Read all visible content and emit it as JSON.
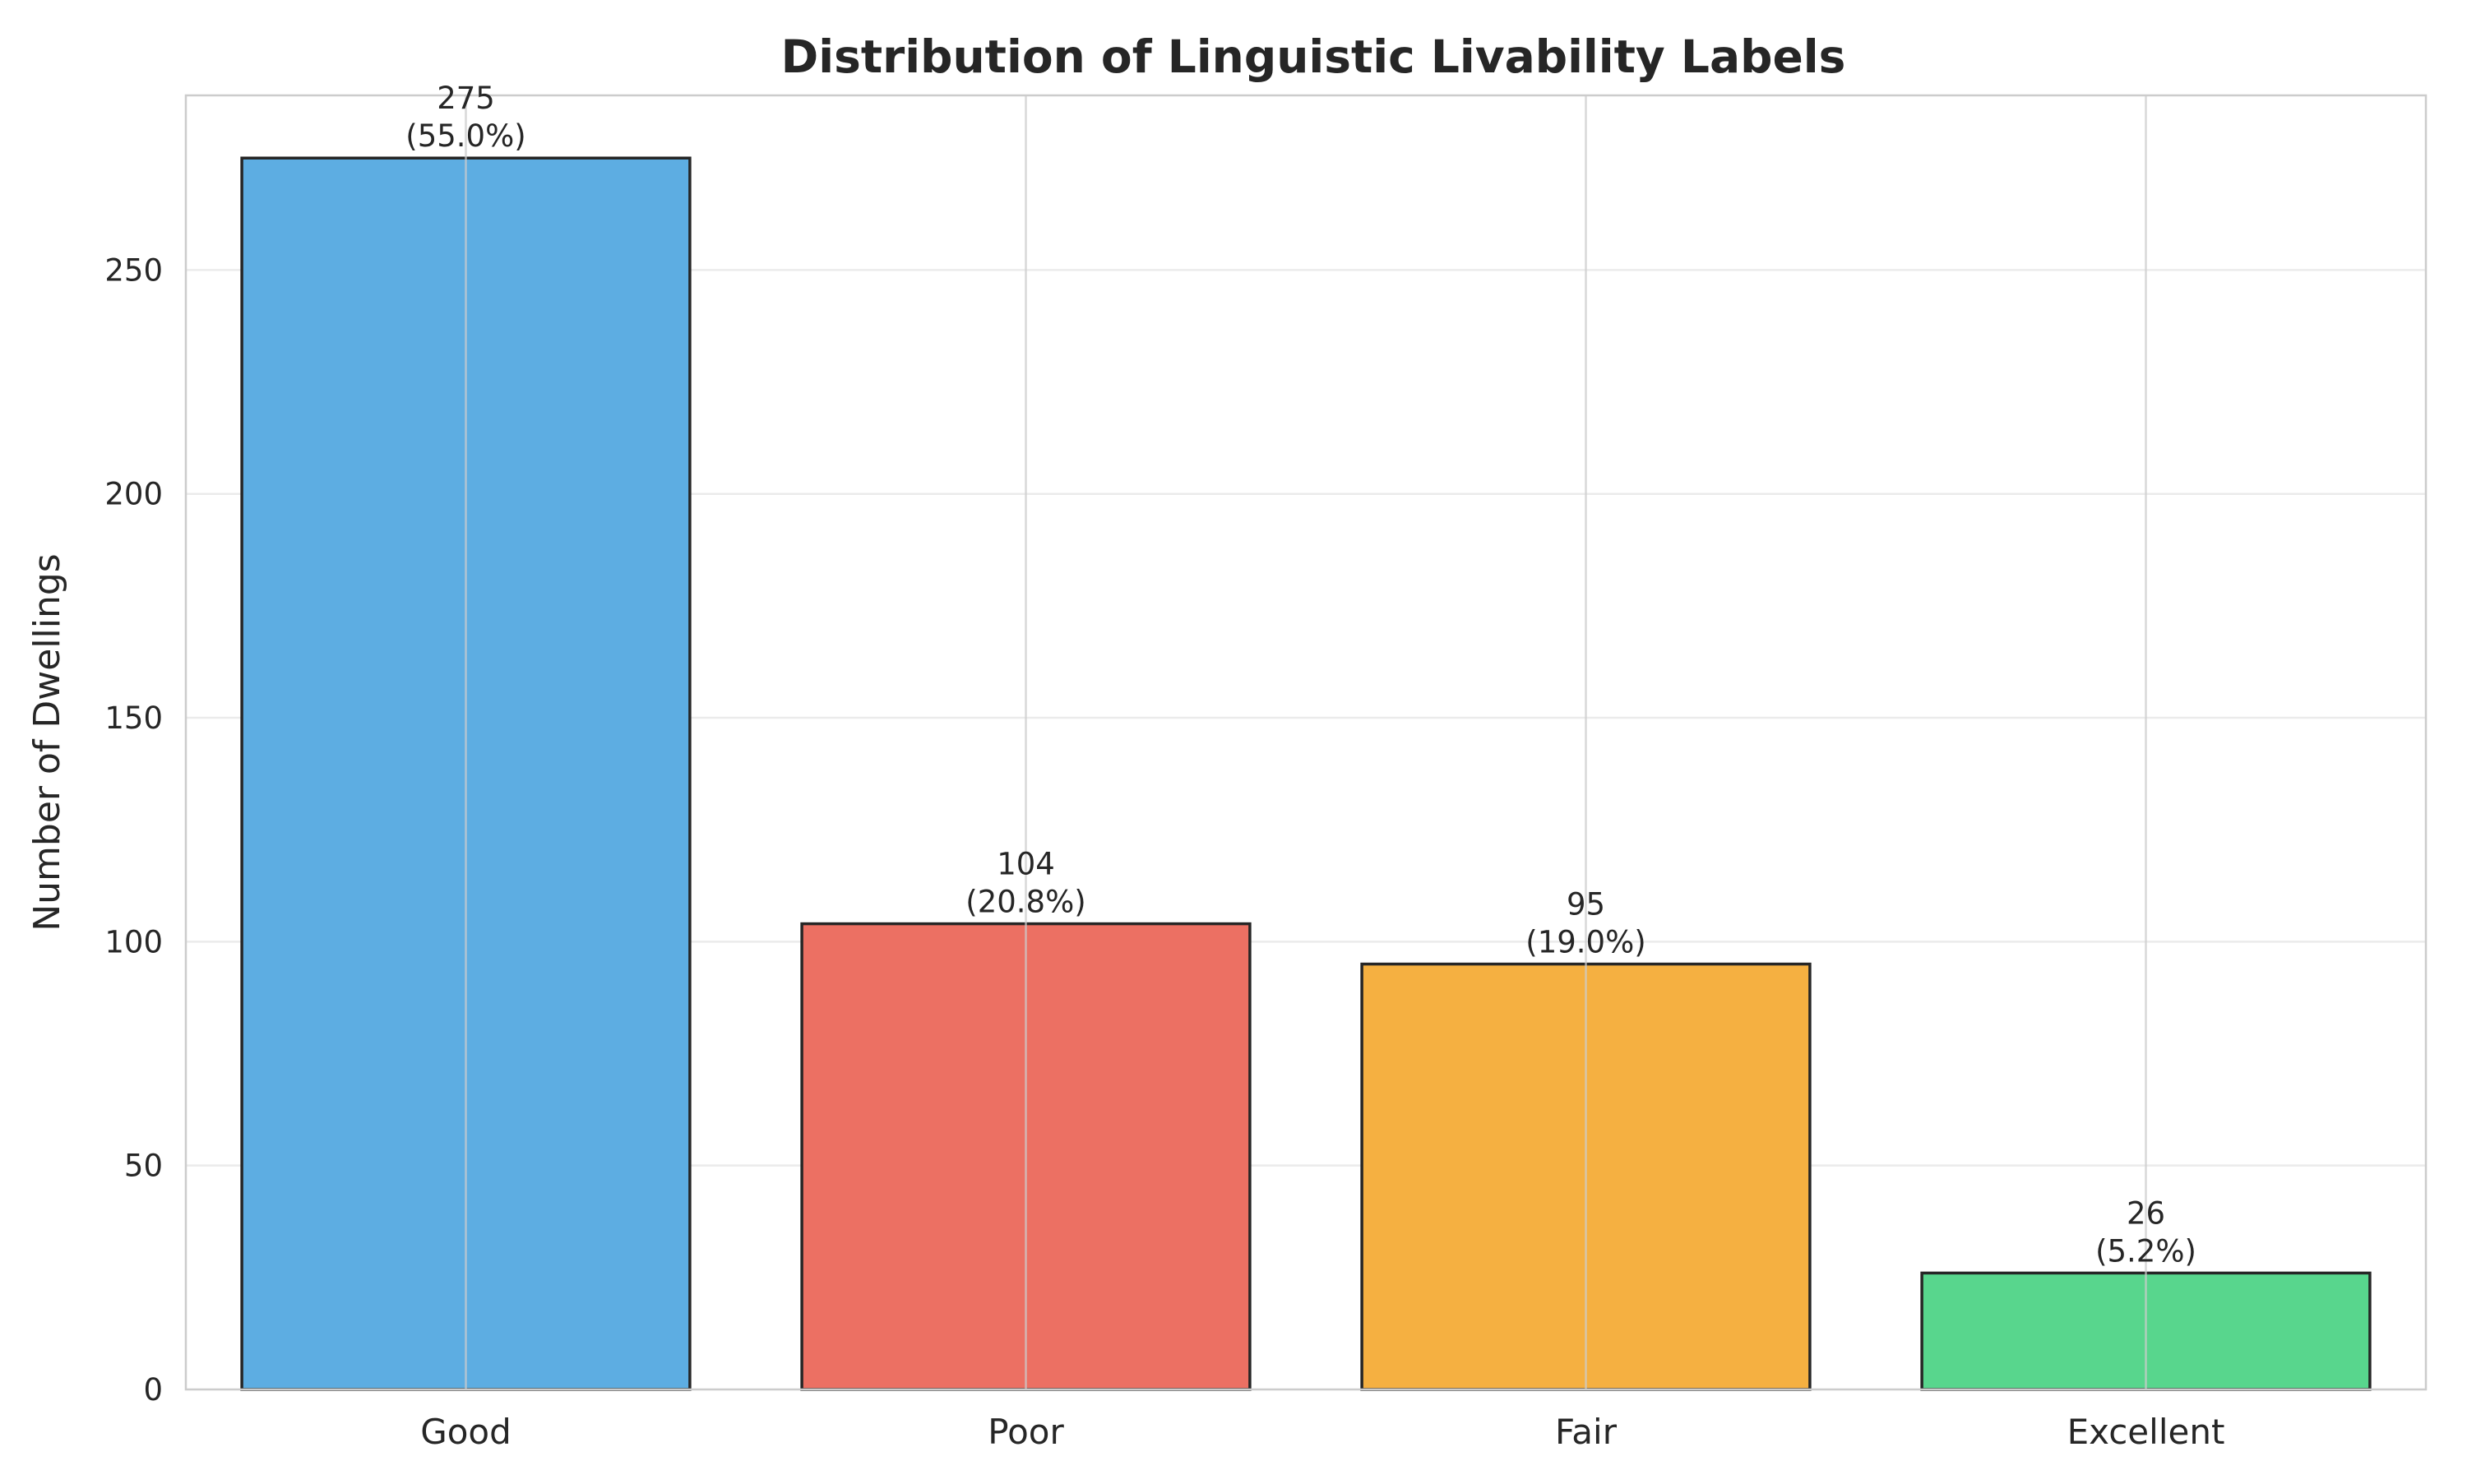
{
  "chart_data": {
    "type": "bar",
    "title": "Distribution of Linguistic Livability Labels",
    "xlabel": "",
    "ylabel": "Number of Dwellings",
    "categories": [
      "Good",
      "Poor",
      "Fair",
      "Excellent"
    ],
    "values": [
      275,
      104,
      95,
      26
    ],
    "value_labels": [
      "275",
      "104",
      "95",
      "26"
    ],
    "percent_labels": [
      "(55.0%)",
      "(20.8%)",
      "(19.0%)",
      "(5.2%)"
    ],
    "colors": [
      "#5DADE2",
      "#EC7063",
      "#F5B041",
      "#58D68D"
    ],
    "edge_color": "#262626",
    "ylim": [
      0,
      289
    ],
    "yticks": [
      0,
      50,
      100,
      150,
      200,
      250
    ],
    "ytick_labels": [
      "0",
      "50",
      "100",
      "150",
      "200",
      "250"
    ],
    "grid": true,
    "legend": "none"
  }
}
